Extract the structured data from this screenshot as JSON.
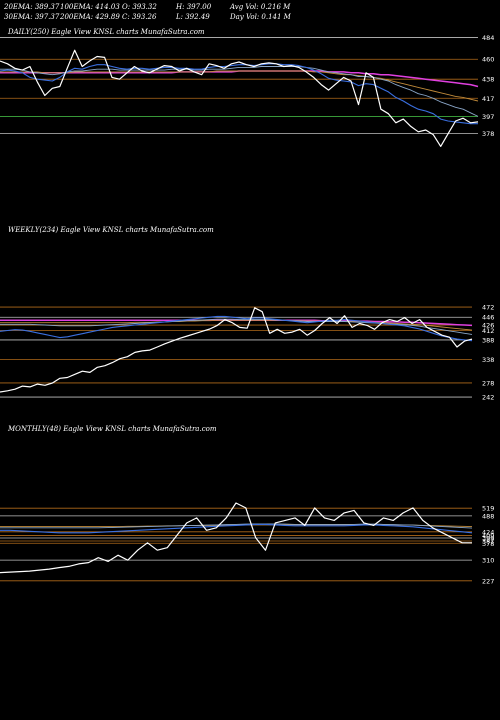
{
  "header": {
    "line1": [
      "20EMA: 389.37",
      "100EMA: 414.03",
      "O: 393.32",
      "H: 397.00",
      "Avg Vol: 0.216  M"
    ],
    "line2": [
      "30EMA: 397.37",
      "200EMA: 429.89",
      "C: 393.26",
      "L: 392.49",
      "Day Vol: 0.141  M"
    ]
  },
  "colors": {
    "background": "#000000",
    "price": "#ffffff",
    "ema_short": "#3a6fe0",
    "ema_mid": "#8aa6c8",
    "ema_long": "#c08a3a",
    "ema_200": "#e040e0",
    "grid_orange": "#b06a1a",
    "grid_white": "#c0c0c0",
    "grid_green": "#3fae3f"
  },
  "chart_data": [
    {
      "type": "line",
      "title": "DAILY(250) Eagle  View  KNSL  charts MunafaSutra.com",
      "ylim": [
        360,
        490
      ],
      "yticks": [
        484,
        460,
        438,
        417,
        397,
        378
      ],
      "series": [
        {
          "values": [
            458,
            455,
            450,
            448,
            452,
            435,
            420,
            428,
            430,
            450,
            470,
            452,
            458,
            463,
            462,
            440,
            438,
            445,
            452,
            447,
            445,
            449,
            453,
            452,
            447,
            450,
            446,
            443,
            455,
            453,
            450,
            455,
            457,
            454,
            452,
            455,
            456,
            455,
            452,
            453,
            451,
            446,
            440,
            432,
            426,
            433,
            440,
            436,
            410,
            445,
            440,
            405,
            400,
            390,
            394,
            386,
            380,
            382,
            377,
            364,
            378,
            392,
            395,
            390,
            391
          ]
        },
        {
          "values": [
            447,
            448,
            447,
            445,
            440,
            438,
            437,
            436,
            440,
            446,
            450,
            449,
            452,
            454,
            454,
            452,
            450,
            449,
            450,
            450,
            449,
            450,
            451,
            451,
            450,
            450,
            449,
            449,
            451,
            452,
            452,
            453,
            454,
            454,
            453,
            454,
            455,
            455,
            454,
            454,
            453,
            451,
            448,
            444,
            439,
            437,
            436,
            435,
            431,
            433,
            432,
            428,
            424,
            418,
            414,
            409,
            405,
            403,
            400,
            394,
            392,
            391,
            390,
            389,
            389
          ]
        },
        {
          "values": [
            449,
            449,
            449,
            448,
            446,
            445,
            444,
            443,
            444,
            446,
            447,
            447,
            448,
            449,
            449,
            449,
            448,
            448,
            448,
            448,
            448,
            448,
            448,
            449,
            449,
            449,
            448,
            448,
            449,
            449,
            449,
            450,
            451,
            451,
            451,
            452,
            452,
            452,
            452,
            452,
            452,
            451,
            450,
            448,
            446,
            445,
            444,
            443,
            441,
            441,
            440,
            438,
            436,
            432,
            429,
            426,
            422,
            420,
            417,
            413,
            410,
            407,
            405,
            401,
            397
          ]
        },
        {
          "values": [
            446,
            446,
            446,
            446,
            446,
            446,
            445,
            445,
            445,
            445,
            446,
            446,
            446,
            446,
            446,
            446,
            446,
            446,
            446,
            446,
            446,
            446,
            446,
            446,
            446,
            446,
            446,
            446,
            446,
            447,
            447,
            447,
            447,
            447,
            447,
            447,
            447,
            447,
            447,
            447,
            447,
            447,
            446,
            446,
            445,
            444,
            443,
            443,
            442,
            441,
            440,
            439,
            437,
            435,
            433,
            431,
            429,
            427,
            425,
            423,
            421,
            419,
            418,
            416,
            414
          ]
        },
        {
          "values": [
            445,
            445,
            445,
            445,
            445,
            445,
            445,
            445,
            445,
            445,
            445,
            445,
            445,
            445,
            445,
            445,
            445,
            445,
            445,
            445,
            445,
            445,
            445,
            445,
            446,
            446,
            446,
            446,
            446,
            446,
            446,
            446,
            447,
            447,
            447,
            447,
            447,
            447,
            447,
            447,
            447,
            447,
            447,
            447,
            446,
            446,
            446,
            445,
            445,
            444,
            444,
            443,
            443,
            442,
            441,
            440,
            439,
            438,
            437,
            436,
            435,
            434,
            433,
            432,
            430
          ]
        }
      ]
    },
    {
      "type": "line",
      "title": "WEEKLY(234) Eagle  View  KNSL  charts MunafaSutra.com",
      "ylim": [
        260,
        490
      ],
      "yticks": [
        472,
        446,
        426,
        412,
        388,
        338,
        278,
        242
      ],
      "series": [
        {
          "values": [
            255,
            258,
            262,
            270,
            268,
            275,
            272,
            278,
            290,
            292,
            300,
            308,
            305,
            318,
            322,
            330,
            340,
            345,
            356,
            360,
            362,
            370,
            378,
            385,
            392,
            398,
            404,
            410,
            416,
            425,
            440,
            432,
            420,
            418,
            470,
            460,
            405,
            415,
            405,
            408,
            415,
            400,
            412,
            430,
            445,
            430,
            450,
            420,
            430,
            425,
            415,
            432,
            440,
            435,
            445,
            430,
            440,
            420,
            410,
            400,
            395,
            370,
            385,
            390
          ]
        },
        {
          "values": [
            410,
            412,
            414,
            413,
            410,
            406,
            402,
            398,
            394,
            396,
            400,
            404,
            408,
            412,
            416,
            420,
            422,
            424,
            426,
            428,
            430,
            432,
            434,
            436,
            438,
            440,
            442,
            444,
            446,
            448,
            448,
            446,
            444,
            442,
            444,
            444,
            442,
            440,
            438,
            436,
            434,
            432,
            434,
            436,
            438,
            438,
            440,
            438,
            436,
            434,
            432,
            430,
            428,
            426,
            424,
            420,
            416,
            410,
            404,
            398,
            394,
            390,
            388,
            386
          ]
        },
        {
          "values": [
            428,
            428,
            428,
            428,
            428,
            427,
            426,
            425,
            424,
            424,
            424,
            424,
            424,
            425,
            426,
            427,
            428,
            429,
            430,
            431,
            432,
            433,
            434,
            435,
            436,
            437,
            438,
            439,
            440,
            441,
            441,
            441,
            440,
            440,
            440,
            440,
            440,
            439,
            438,
            437,
            436,
            435,
            435,
            435,
            435,
            435,
            435,
            434,
            433,
            432,
            431,
            430,
            429,
            428,
            427,
            425,
            423,
            420,
            417,
            414,
            411,
            408,
            405,
            402
          ]
        },
        {
          "values": [
            432,
            432,
            432,
            432,
            432,
            432,
            432,
            432,
            432,
            432,
            432,
            432,
            432,
            432,
            432,
            432,
            432,
            432,
            433,
            433,
            433,
            434,
            434,
            435,
            435,
            436,
            436,
            437,
            437,
            438,
            438,
            438,
            438,
            438,
            438,
            438,
            438,
            438,
            438,
            437,
            437,
            436,
            436,
            436,
            436,
            436,
            435,
            435,
            434,
            434,
            433,
            432,
            431,
            430,
            429,
            428,
            427,
            425,
            423,
            421,
            419,
            417,
            415,
            413
          ]
        },
        {
          "values": [
            438,
            438,
            438,
            438,
            438,
            438,
            438,
            438,
            438,
            438,
            438,
            438,
            438,
            438,
            438,
            438,
            438,
            438,
            438,
            438,
            438,
            438,
            438,
            438,
            438,
            438,
            438,
            438,
            438,
            438,
            438,
            438,
            438,
            438,
            438,
            438,
            438,
            438,
            438,
            438,
            438,
            438,
            438,
            437,
            437,
            437,
            437,
            436,
            436,
            436,
            435,
            435,
            434,
            434,
            433,
            433,
            432,
            431,
            430,
            429,
            428,
            427,
            426,
            425
          ]
        }
      ]
    },
    {
      "type": "line",
      "title": "MONTHLY(48) Eagle  View  KNSL  charts MunafaSutra.com",
      "ylim": [
        190,
        560
      ],
      "yticks": [
        519,
        488,
        424,
        409,
        399,
        387,
        378,
        310,
        227
      ],
      "series": [
        {
          "values": [
            260,
            262,
            264,
            266,
            270,
            274,
            280,
            285,
            295,
            300,
            320,
            305,
            330,
            310,
            350,
            380,
            350,
            360,
            410,
            460,
            480,
            430,
            440,
            480,
            540,
            520,
            400,
            350,
            460,
            470,
            480,
            450,
            520,
            480,
            470,
            500,
            510,
            460,
            450,
            480,
            470,
            500,
            520,
            470,
            440,
            420,
            400,
            380,
            380
          ]
        },
        {
          "values": [
            430,
            430,
            428,
            426,
            424,
            422,
            420,
            420,
            420,
            420,
            422,
            424,
            426,
            428,
            430,
            432,
            434,
            436,
            438,
            440,
            442,
            444,
            446,
            448,
            450,
            452,
            454,
            454,
            452,
            450,
            448,
            448,
            448,
            448,
            448,
            448,
            450,
            452,
            452,
            450,
            448,
            446,
            444,
            440,
            436,
            432,
            428,
            424,
            420
          ]
        },
        {
          "values": [
            440,
            440,
            440,
            440,
            440,
            440,
            440,
            440,
            440,
            440,
            440,
            441,
            442,
            443,
            444,
            445,
            446,
            447,
            448,
            449,
            450,
            451,
            452,
            453,
            454,
            455,
            456,
            456,
            456,
            455,
            454,
            454,
            454,
            454,
            454,
            454,
            454,
            455,
            455,
            454,
            453,
            452,
            451,
            449,
            447,
            445,
            443,
            441,
            439
          ]
        },
        {
          "values": [
            445,
            445,
            445,
            445,
            445,
            445,
            445,
            445,
            445,
            445,
            445,
            445,
            445,
            446,
            446,
            447,
            447,
            448,
            448,
            449,
            449,
            450,
            450,
            451,
            451,
            452,
            452,
            452,
            452,
            452,
            452,
            452,
            452,
            452,
            452,
            452,
            452,
            452,
            452,
            452,
            452,
            451,
            451,
            450,
            449,
            448,
            447,
            446,
            445
          ]
        }
      ]
    }
  ]
}
